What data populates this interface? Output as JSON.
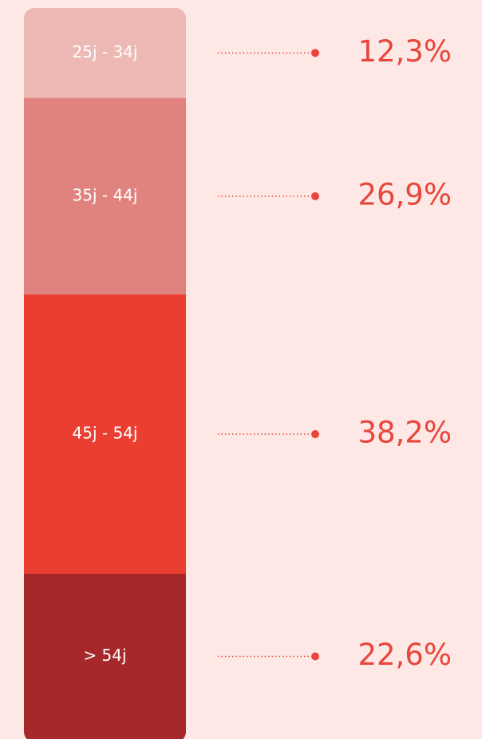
{
  "chart_data": {
    "type": "stacked-bar",
    "categories": [
      "25j - 34j",
      "35j - 44j",
      "45j - 54j",
      "> 54j"
    ],
    "values": [
      12.3,
      26.9,
      38.2,
      22.6
    ],
    "value_labels": [
      "12,3%",
      "26,9%",
      "38,2%",
      "22,6%"
    ],
    "colors": [
      "#edb9b5",
      "#e0837f",
      "#ea3e30",
      "#a6282a"
    ],
    "label_color": "#e8453c"
  }
}
